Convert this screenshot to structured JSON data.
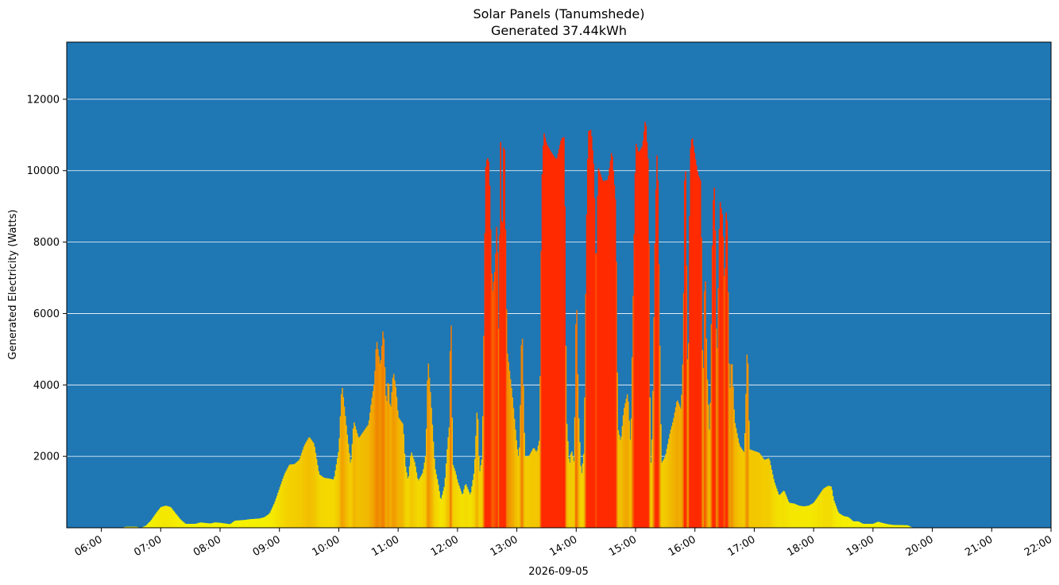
{
  "chart_data": {
    "type": "bar",
    "title": "Solar Panels (Tanumshede)",
    "subtitle": "Generated 37.44kWh",
    "xlabel": "2026-09-05",
    "ylabel": "Generated Electricity (Watts)",
    "x_unit": "time of day (HH:MM)",
    "x_range": [
      "05:25",
      "22:00"
    ],
    "ylim": [
      0,
      13600
    ],
    "y_ticks": [
      2000,
      4000,
      6000,
      8000,
      10000,
      12000
    ],
    "x_ticks": [
      "06:00",
      "07:00",
      "08:00",
      "09:00",
      "10:00",
      "11:00",
      "12:00",
      "13:00",
      "14:00",
      "15:00",
      "16:00",
      "17:00",
      "18:00",
      "19:00",
      "20:00",
      "21:00",
      "22:00"
    ],
    "grid": "horizontal",
    "colors": {
      "plot_background": "#1f77b4",
      "grid": "#ffffff",
      "low": "#f5f500",
      "mid": "#f08c00",
      "high": "#ff2a00"
    },
    "bar_color_rule": "bar colour shifts from yellow (low output) through orange to red (high output)",
    "keypoints": [
      [
        "06:20",
        0
      ],
      [
        "06:25",
        30
      ],
      [
        "06:35",
        30
      ],
      [
        "06:40",
        0
      ],
      [
        "06:45",
        60
      ],
      [
        "06:50",
        200
      ],
      [
        "06:55",
        400
      ],
      [
        "07:00",
        580
      ],
      [
        "07:05",
        620
      ],
      [
        "07:10",
        580
      ],
      [
        "07:15",
        400
      ],
      [
        "07:20",
        230
      ],
      [
        "07:25",
        110
      ],
      [
        "07:35",
        110
      ],
      [
        "07:40",
        150
      ],
      [
        "07:50",
        120
      ],
      [
        "07:55",
        150
      ],
      [
        "08:00",
        140
      ],
      [
        "08:10",
        100
      ],
      [
        "08:15",
        200
      ],
      [
        "08:25",
        220
      ],
      [
        "08:30",
        240
      ],
      [
        "08:40",
        260
      ],
      [
        "08:45",
        300
      ],
      [
        "08:50",
        400
      ],
      [
        "08:55",
        700
      ],
      [
        "09:00",
        1100
      ],
      [
        "09:05",
        1500
      ],
      [
        "09:10",
        1770
      ],
      [
        "09:15",
        1780
      ],
      [
        "09:20",
        1900
      ],
      [
        "09:25",
        2300
      ],
      [
        "09:30",
        2550
      ],
      [
        "09:35",
        2350
      ],
      [
        "09:40",
        1500
      ],
      [
        "09:45",
        1400
      ],
      [
        "09:50",
        1380
      ],
      [
        "09:55",
        1350
      ],
      [
        "10:00",
        2200
      ],
      [
        "10:03",
        4050
      ],
      [
        "10:07",
        3000
      ],
      [
        "10:12",
        1700
      ],
      [
        "10:15",
        3000
      ],
      [
        "10:20",
        2500
      ],
      [
        "10:25",
        2700
      ],
      [
        "10:30",
        2900
      ],
      [
        "10:33",
        3550
      ],
      [
        "10:36",
        4100
      ],
      [
        "10:38",
        5300
      ],
      [
        "10:42",
        4500
      ],
      [
        "10:45",
        5700
      ],
      [
        "10:48",
        3300
      ],
      [
        "10:50",
        4300
      ],
      [
        "10:52",
        3200
      ],
      [
        "10:55",
        4400
      ],
      [
        "10:58",
        3850
      ],
      [
        "11:00",
        3100
      ],
      [
        "11:05",
        2900
      ],
      [
        "11:07",
        1800
      ],
      [
        "11:10",
        1300
      ],
      [
        "11:13",
        2150
      ],
      [
        "11:17",
        1800
      ],
      [
        "11:20",
        1300
      ],
      [
        "11:25",
        1550
      ],
      [
        "11:28",
        2100
      ],
      [
        "11:30",
        4800
      ],
      [
        "11:33",
        3600
      ],
      [
        "11:37",
        1700
      ],
      [
        "11:40",
        1300
      ],
      [
        "11:43",
        750
      ],
      [
        "11:47",
        1200
      ],
      [
        "11:50",
        2400
      ],
      [
        "11:52",
        2950
      ],
      [
        "11:53",
        6950
      ],
      [
        "11:55",
        1800
      ],
      [
        "11:58",
        1550
      ],
      [
        "12:00",
        1300
      ],
      [
        "12:05",
        900
      ],
      [
        "12:08",
        1250
      ],
      [
        "12:13",
        900
      ],
      [
        "12:17",
        1600
      ],
      [
        "12:20",
        3550
      ],
      [
        "12:22",
        1500
      ],
      [
        "12:25",
        2000
      ],
      [
        "12:27",
        6500
      ],
      [
        "12:28",
        10000
      ],
      [
        "12:30",
        10400
      ],
      [
        "12:32",
        10200
      ],
      [
        "12:35",
        6500
      ],
      [
        "12:38",
        7300
      ],
      [
        "12:40",
        8800
      ],
      [
        "12:42",
        4500
      ],
      [
        "12:43",
        11900
      ],
      [
        "12:45",
        7500
      ],
      [
        "12:47",
        11700
      ],
      [
        "12:50",
        5000
      ],
      [
        "12:55",
        3800
      ],
      [
        "13:00",
        2300
      ],
      [
        "13:02",
        1900
      ],
      [
        "13:03",
        2600
      ],
      [
        "13:05",
        5950
      ],
      [
        "13:08",
        2000
      ],
      [
        "13:12",
        2000
      ],
      [
        "13:17",
        2250
      ],
      [
        "13:20",
        2100
      ],
      [
        "13:23",
        2500
      ],
      [
        "13:25",
        9500
      ],
      [
        "13:27",
        11100
      ],
      [
        "13:30",
        10750
      ],
      [
        "13:35",
        10500
      ],
      [
        "13:40",
        10300
      ],
      [
        "13:45",
        10900
      ],
      [
        "13:48",
        10950
      ],
      [
        "13:50",
        3150
      ],
      [
        "13:53",
        1700
      ],
      [
        "13:55",
        2200
      ],
      [
        "13:58",
        1800
      ],
      [
        "14:00",
        7000
      ],
      [
        "14:02",
        3400
      ],
      [
        "14:05",
        1400
      ],
      [
        "14:08",
        2200
      ],
      [
        "14:10",
        8000
      ],
      [
        "14:12",
        11100
      ],
      [
        "14:15",
        11150
      ],
      [
        "14:18",
        10000
      ],
      [
        "14:20",
        6900
      ],
      [
        "14:22",
        10100
      ],
      [
        "14:27",
        9700
      ],
      [
        "14:32",
        9750
      ],
      [
        "14:36",
        10600
      ],
      [
        "14:40",
        9000
      ],
      [
        "14:42",
        2800
      ],
      [
        "14:45",
        2400
      ],
      [
        "14:48",
        3300
      ],
      [
        "14:52",
        3800
      ],
      [
        "14:55",
        2200
      ],
      [
        "15:00",
        10800
      ],
      [
        "15:03",
        10500
      ],
      [
        "15:07",
        10700
      ],
      [
        "15:10",
        11500
      ],
      [
        "15:13",
        10100
      ],
      [
        "15:15",
        1500
      ],
      [
        "15:17",
        2800
      ],
      [
        "15:20",
        9000
      ],
      [
        "15:22",
        10900
      ],
      [
        "15:24",
        6200
      ],
      [
        "15:26",
        1800
      ],
      [
        "15:30",
        2000
      ],
      [
        "15:35",
        2700
      ],
      [
        "15:38",
        3000
      ],
      [
        "15:42",
        3600
      ],
      [
        "15:46",
        3300
      ],
      [
        "15:48",
        5000
      ],
      [
        "15:50",
        11300
      ],
      [
        "15:53",
        3400
      ],
      [
        "15:55",
        10500
      ],
      [
        "15:57",
        11000
      ],
      [
        "16:00",
        10400
      ],
      [
        "16:03",
        9900
      ],
      [
        "16:06",
        9700
      ],
      [
        "16:08",
        3400
      ],
      [
        "16:10",
        7700
      ],
      [
        "16:12",
        4500
      ],
      [
        "16:15",
        2400
      ],
      [
        "16:18",
        9000
      ],
      [
        "16:20",
        9700
      ],
      [
        "16:22",
        4200
      ],
      [
        "16:25",
        9200
      ],
      [
        "16:28",
        8700
      ],
      [
        "16:30",
        6500
      ],
      [
        "16:32",
        9600
      ],
      [
        "16:35",
        3600
      ],
      [
        "16:37",
        4900
      ],
      [
        "16:40",
        3000
      ],
      [
        "16:45",
        2300
      ],
      [
        "16:50",
        2100
      ],
      [
        "16:53",
        5400
      ],
      [
        "16:55",
        2200
      ],
      [
        "17:00",
        2150
      ],
      [
        "17:05",
        2100
      ],
      [
        "17:10",
        1900
      ],
      [
        "17:15",
        1950
      ],
      [
        "17:20",
        1300
      ],
      [
        "17:25",
        900
      ],
      [
        "17:30",
        1050
      ],
      [
        "17:35",
        700
      ],
      [
        "17:40",
        680
      ],
      [
        "17:45",
        620
      ],
      [
        "17:50",
        600
      ],
      [
        "17:55",
        620
      ],
      [
        "18:00",
        700
      ],
      [
        "18:05",
        900
      ],
      [
        "18:10",
        1100
      ],
      [
        "18:15",
        1180
      ],
      [
        "18:18",
        1150
      ],
      [
        "18:20",
        800
      ],
      [
        "18:25",
        420
      ],
      [
        "18:30",
        330
      ],
      [
        "18:35",
        300
      ],
      [
        "18:40",
        180
      ],
      [
        "18:45",
        180
      ],
      [
        "18:50",
        110
      ],
      [
        "18:55",
        110
      ],
      [
        "19:00",
        110
      ],
      [
        "19:05",
        170
      ],
      [
        "19:10",
        130
      ],
      [
        "19:15",
        100
      ],
      [
        "19:20",
        80
      ],
      [
        "19:35",
        70
      ],
      [
        "19:40",
        0
      ]
    ]
  }
}
